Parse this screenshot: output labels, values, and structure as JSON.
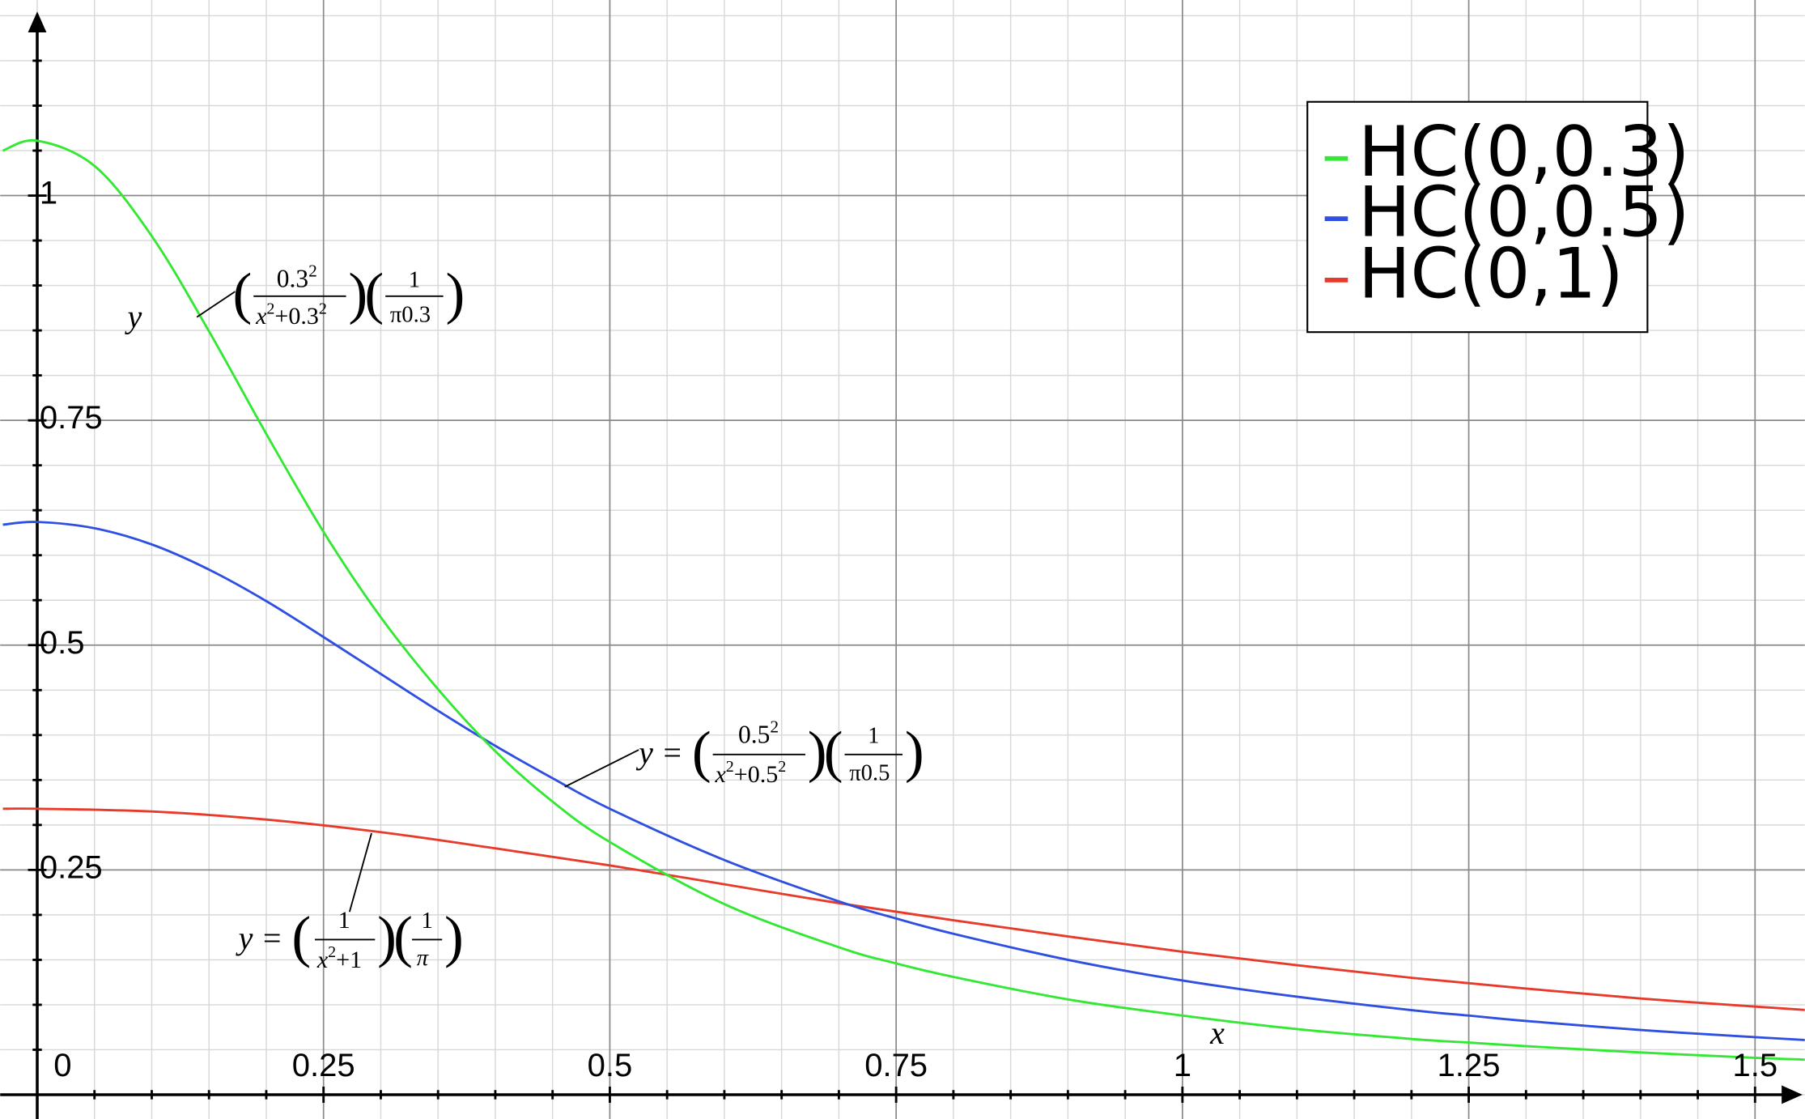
{
  "chart_data": {
    "type": "line",
    "title": "",
    "xlabel": "x",
    "ylabel": "y",
    "xlim": [
      -0.052,
      1.57
    ],
    "ylim": [
      -0.012,
      1.22
    ],
    "x_ticks": [
      0,
      0.25,
      0.5,
      0.75,
      1,
      1.25,
      1.5
    ],
    "x_tick_labels": [
      "0",
      "0.25",
      "0.5",
      "0.75",
      "1",
      "1.25",
      "1.5"
    ],
    "y_ticks": [
      0.25,
      0.5,
      0.75,
      1
    ],
    "y_tick_labels": [
      "0.25",
      "0.5",
      "0.75",
      "1"
    ],
    "grid": true,
    "legend_position": "top-right",
    "series": [
      {
        "name": "HC(0,0.3)",
        "color": "#33e833",
        "formula": {
          "prefix": "y",
          "num1": "0.3",
          "num1_sup": "2",
          "den1": "x",
          "den1_sup": "2",
          "den1_tail": "+0.3",
          "den1_tail_sup": "2",
          "num2": "1",
          "den2": "π0.3"
        },
        "x": [
          -0.03,
          0,
          0.05,
          0.1,
          0.15,
          0.2,
          0.25,
          0.3,
          0.35,
          0.4,
          0.45,
          0.5,
          0.6,
          0.7,
          0.75,
          0.8,
          0.9,
          1,
          1.1,
          1.2,
          1.25,
          1.3,
          1.4,
          1.5,
          1.57
        ],
        "values": [
          1.05,
          1.061,
          1.033,
          0.955,
          0.849,
          0.735,
          0.626,
          0.531,
          0.451,
          0.382,
          0.326,
          0.281,
          0.212,
          0.164,
          0.146,
          0.131,
          0.106,
          0.088,
          0.073,
          0.062,
          0.058,
          0.054,
          0.047,
          0.041,
          0.038
        ]
      },
      {
        "name": "HC(0,0.5)",
        "color": "#2f4fe0",
        "formula": {
          "prefix": "y =",
          "num1": "0.5",
          "num1_sup": "2",
          "den1": "x",
          "den1_sup": "2",
          "den1_tail": "+0.5",
          "den1_tail_sup": "2",
          "num2": "1",
          "den2": "π0.5"
        },
        "x": [
          -0.03,
          0,
          0.05,
          0.1,
          0.15,
          0.2,
          0.25,
          0.3,
          0.35,
          0.4,
          0.45,
          0.5,
          0.6,
          0.7,
          0.75,
          0.8,
          0.9,
          1,
          1.1,
          1.2,
          1.25,
          1.3,
          1.4,
          1.5,
          1.57
        ],
        "values": [
          0.634,
          0.637,
          0.63,
          0.612,
          0.584,
          0.549,
          0.509,
          0.468,
          0.427,
          0.388,
          0.352,
          0.318,
          0.261,
          0.215,
          0.196,
          0.179,
          0.15,
          0.127,
          0.109,
          0.094,
          0.088,
          0.082,
          0.072,
          0.064,
          0.059
        ]
      },
      {
        "name": "HC(0,1)",
        "color": "#e83a2a",
        "formula": {
          "prefix": "y =",
          "num1": "1",
          "num1_sup": "",
          "den1": "x",
          "den1_sup": "2",
          "den1_tail": "+1",
          "den1_tail_sup": "",
          "num2": "1",
          "den2": "π"
        },
        "x": [
          -0.03,
          0,
          0.1,
          0.2,
          0.3,
          0.4,
          0.5,
          0.6,
          0.7,
          0.8,
          0.9,
          1,
          1.1,
          1.2,
          1.3,
          1.4,
          1.5,
          1.57
        ],
        "values": [
          0.318,
          0.318,
          0.315,
          0.306,
          0.292,
          0.274,
          0.255,
          0.234,
          0.213,
          0.194,
          0.176,
          0.159,
          0.144,
          0.13,
          0.118,
          0.107,
          0.098,
          0.092
        ]
      }
    ]
  }
}
